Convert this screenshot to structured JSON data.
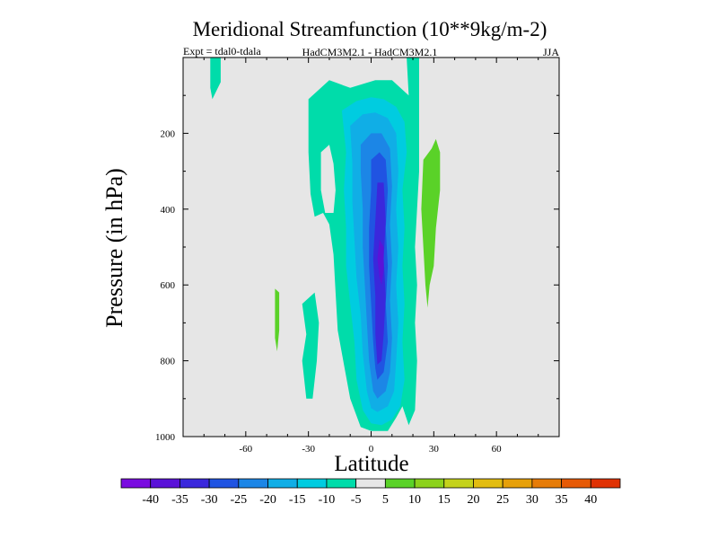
{
  "chart_data": {
    "type": "contour",
    "title": "Meridional Streamfunction (10**9kg/m-2)",
    "subtitle_left": "Expt = tdal0-tdala",
    "subtitle_center": "HadCM3M2.1 - HadCM3M2.1",
    "subtitle_right": "JJA",
    "xlabel": "Latitude",
    "ylabel": "Pressure (in hPa)",
    "xlim": [
      -90,
      90
    ],
    "ylim": [
      1000,
      0
    ],
    "x_ticks": [
      {
        "value": -60,
        "label": "-60"
      },
      {
        "value": -30,
        "label": "-30"
      },
      {
        "value": 0,
        "label": "0"
      },
      {
        "value": 30,
        "label": "30"
      },
      {
        "value": 60,
        "label": "60"
      }
    ],
    "y_ticks": [
      {
        "value": 200,
        "label": "200"
      },
      {
        "value": 400,
        "label": "400"
      },
      {
        "value": 600,
        "label": "600"
      },
      {
        "value": 800,
        "label": "800"
      },
      {
        "value": 1000,
        "label": "1000"
      }
    ],
    "background_color": "#e6e6e6",
    "levels": [
      {
        "range": [
          -45,
          -40
        ],
        "color": "#7a0ce0"
      },
      {
        "range": [
          -40,
          -35
        ],
        "color": "#5a12d8"
      },
      {
        "range": [
          -35,
          -30
        ],
        "color": "#3a28dc"
      },
      {
        "range": [
          -30,
          -25
        ],
        "color": "#2054e2"
      },
      {
        "range": [
          -25,
          -20
        ],
        "color": "#1c86e6"
      },
      {
        "range": [
          -20,
          -15
        ],
        "color": "#10aee6"
      },
      {
        "range": [
          -15,
          -10
        ],
        "color": "#00cce0"
      },
      {
        "range": [
          -10,
          -5
        ],
        "color": "#00dcaa"
      },
      {
        "range": [
          -5,
          5
        ],
        "color": "#e6e6e6"
      },
      {
        "range": [
          5,
          10
        ],
        "color": "#5ad228"
      },
      {
        "range": [
          10,
          15
        ],
        "color": "#8cd21c"
      },
      {
        "range": [
          15,
          20
        ],
        "color": "#c4d21c"
      },
      {
        "range": [
          20,
          25
        ],
        "color": "#e2bc10"
      },
      {
        "range": [
          25,
          30
        ],
        "color": "#e6a00a"
      },
      {
        "range": [
          30,
          35
        ],
        "color": "#e67c08"
      },
      {
        "range": [
          35,
          40
        ],
        "color": "#e65a06"
      },
      {
        "range": [
          40,
          45
        ],
        "color": "#e03204"
      }
    ],
    "colorbar_labels": [
      "-40",
      "-35",
      "-30",
      "-25",
      "-20",
      "-15",
      "-10",
      "-5",
      "5",
      "10",
      "15",
      "20",
      "25",
      "30",
      "35",
      "40"
    ],
    "regions": [
      {
        "name": "upper-left-cyan-streak",
        "level": -10,
        "points": [
          [
            -77,
            0
          ],
          [
            -72,
            0
          ],
          [
            -72,
            65
          ],
          [
            -76,
            110
          ],
          [
            -77,
            80
          ]
        ]
      },
      {
        "name": "left-lower-cyan-blob",
        "level": -10,
        "points": [
          [
            -33,
            650
          ],
          [
            -27,
            620
          ],
          [
            -25,
            700
          ],
          [
            -26,
            800
          ],
          [
            -28,
            900
          ],
          [
            -31,
            900
          ],
          [
            -33,
            800
          ],
          [
            -31,
            730
          ]
        ]
      },
      {
        "name": "far-left-green-strip",
        "level": 5,
        "points": [
          [
            -46,
            610
          ],
          [
            -44,
            620
          ],
          [
            -44,
            720
          ],
          [
            -45,
            775
          ],
          [
            -46,
            740
          ]
        ]
      },
      {
        "name": "main-cyan-envelope",
        "level": -10,
        "points": [
          [
            -30,
            110
          ],
          [
            -20,
            60
          ],
          [
            -10,
            80
          ],
          [
            2,
            60
          ],
          [
            10,
            60
          ],
          [
            18,
            100
          ],
          [
            17,
            0
          ],
          [
            23,
            0
          ],
          [
            23,
            300
          ],
          [
            21,
            500
          ],
          [
            22,
            600
          ],
          [
            21,
            700
          ],
          [
            22,
            800
          ],
          [
            21,
            930
          ],
          [
            18,
            970
          ],
          [
            15,
            920
          ],
          [
            12,
            950
          ],
          [
            8,
            985
          ],
          [
            0,
            985
          ],
          [
            -5,
            975
          ],
          [
            -10,
            900
          ],
          [
            -13,
            810
          ],
          [
            -16,
            720
          ],
          [
            -17,
            620
          ],
          [
            -18,
            520
          ],
          [
            -20,
            440
          ],
          [
            -23,
            410
          ],
          [
            -27,
            420
          ],
          [
            -29,
            360
          ],
          [
            -30,
            250
          ]
        ]
      },
      {
        "name": "cyan-envelope-hole",
        "level": 0,
        "points": [
          [
            -24,
            250
          ],
          [
            -20,
            230
          ],
          [
            -18,
            280
          ],
          [
            -17,
            350
          ],
          [
            -18,
            410
          ],
          [
            -22,
            410
          ],
          [
            -24,
            350
          ]
        ]
      },
      {
        "name": "blue-shell",
        "level": -15,
        "points": [
          [
            -14,
            140
          ],
          [
            -7,
            115
          ],
          [
            0,
            105
          ],
          [
            6,
            110
          ],
          [
            12,
            130
          ],
          [
            16,
            170
          ],
          [
            17,
            250
          ],
          [
            15,
            350
          ],
          [
            16,
            450
          ],
          [
            15,
            550
          ],
          [
            16,
            650
          ],
          [
            15,
            750
          ],
          [
            16,
            850
          ],
          [
            14,
            920
          ],
          [
            10,
            955
          ],
          [
            5,
            970
          ],
          [
            0,
            965
          ],
          [
            -4,
            930
          ],
          [
            -7,
            850
          ],
          [
            -8,
            750
          ],
          [
            -10,
            650
          ],
          [
            -12,
            550
          ],
          [
            -12,
            450
          ],
          [
            -13,
            350
          ],
          [
            -12,
            250
          ]
        ]
      },
      {
        "name": "medium-blue-band",
        "level": -20,
        "points": [
          [
            -10,
            180
          ],
          [
            -4,
            150
          ],
          [
            2,
            145
          ],
          [
            8,
            160
          ],
          [
            12,
            200
          ],
          [
            13,
            300
          ],
          [
            12,
            400
          ],
          [
            13,
            500
          ],
          [
            12,
            600
          ],
          [
            13,
            700
          ],
          [
            12,
            800
          ],
          [
            11,
            880
          ],
          [
            8,
            920
          ],
          [
            3,
            935
          ],
          [
            0,
            925
          ],
          [
            -2,
            880
          ],
          [
            -4,
            780
          ],
          [
            -5,
            680
          ],
          [
            -7,
            580
          ],
          [
            -8,
            480
          ],
          [
            -9,
            380
          ],
          [
            -9,
            280
          ]
        ]
      },
      {
        "name": "blue-band",
        "level": -25,
        "points": [
          [
            -5,
            230
          ],
          [
            0,
            200
          ],
          [
            5,
            200
          ],
          [
            9,
            240
          ],
          [
            10,
            340
          ],
          [
            9,
            440
          ],
          [
            10,
            540
          ],
          [
            9,
            640
          ],
          [
            10,
            740
          ],
          [
            9,
            830
          ],
          [
            7,
            880
          ],
          [
            3,
            900
          ],
          [
            1,
            880
          ],
          [
            -1,
            800
          ],
          [
            -2,
            700
          ],
          [
            -3,
            600
          ],
          [
            -4,
            500
          ],
          [
            -4,
            400
          ],
          [
            -5,
            300
          ]
        ]
      },
      {
        "name": "deep-blue-core",
        "level": -30,
        "points": [
          [
            0,
            270
          ],
          [
            4,
            250
          ],
          [
            7,
            270
          ],
          [
            8,
            350
          ],
          [
            7,
            450
          ],
          [
            8,
            550
          ],
          [
            7,
            650
          ],
          [
            8,
            750
          ],
          [
            6,
            830
          ],
          [
            3,
            850
          ],
          [
            2,
            820
          ],
          [
            1,
            750
          ],
          [
            0,
            650
          ],
          [
            -1,
            550
          ],
          [
            -1,
            450
          ],
          [
            0,
            350
          ]
        ]
      },
      {
        "name": "indigo-core",
        "level": -35,
        "points": [
          [
            3,
            330
          ],
          [
            6,
            330
          ],
          [
            7,
            430
          ],
          [
            6,
            530
          ],
          [
            7,
            630
          ],
          [
            6,
            730
          ],
          [
            5,
            800
          ],
          [
            3,
            810
          ],
          [
            2,
            730
          ],
          [
            2,
            630
          ],
          [
            1,
            530
          ],
          [
            2,
            430
          ]
        ]
      },
      {
        "name": "violet-core",
        "level": -40,
        "points": [
          [
            4,
            480
          ],
          [
            6,
            500
          ],
          [
            6,
            560
          ],
          [
            5,
            600
          ],
          [
            4,
            580
          ],
          [
            3,
            530
          ]
        ]
      },
      {
        "name": "right-green-blob",
        "level": 5,
        "points": [
          [
            25,
            270
          ],
          [
            29,
            240
          ],
          [
            31,
            215
          ],
          [
            33,
            250
          ],
          [
            33,
            350
          ],
          [
            31,
            450
          ],
          [
            30,
            550
          ],
          [
            28,
            600
          ],
          [
            27,
            660
          ],
          [
            26,
            600
          ],
          [
            25,
            500
          ],
          [
            24,
            400
          ]
        ]
      }
    ]
  }
}
